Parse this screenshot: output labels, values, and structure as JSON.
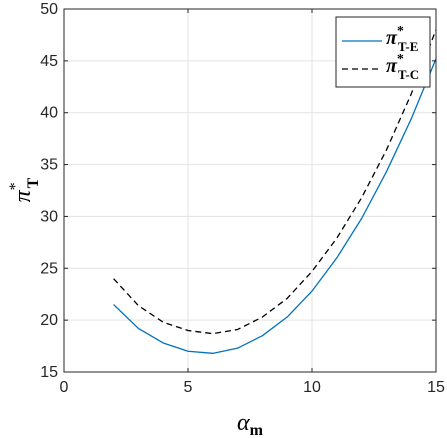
{
  "chart_data": {
    "type": "line",
    "title": "",
    "xlabel": {
      "symbol": "α",
      "sub": "m"
    },
    "ylabel": {
      "symbol": "π",
      "sup": "*",
      "sub": "T"
    },
    "xlim": [
      0,
      15
    ],
    "ylim": [
      15,
      50
    ],
    "xticks": [
      0,
      5,
      10,
      15
    ],
    "yticks": [
      15,
      20,
      25,
      30,
      35,
      40,
      45,
      50
    ],
    "grid": true,
    "legend_position": "top-right",
    "series": [
      {
        "label": {
          "symbol": "π",
          "sup": "*",
          "sub": "T-E"
        },
        "color": "#0072BD",
        "style": "solid",
        "x": [
          2,
          3,
          4,
          5,
          6,
          7,
          8,
          9,
          10,
          11,
          12,
          13,
          14,
          15
        ],
        "values": [
          21.5,
          19.2,
          17.8,
          17.0,
          16.8,
          17.3,
          18.5,
          20.3,
          22.8,
          26.0,
          29.8,
          34.3,
          39.4,
          45.2
        ]
      },
      {
        "label": {
          "symbol": "π",
          "sup": "*",
          "sub": "T-C"
        },
        "color": "#000000",
        "style": "dashed",
        "x": [
          2,
          3,
          4,
          5,
          6,
          7,
          8,
          9,
          10,
          11,
          12,
          13,
          14,
          15
        ],
        "values": [
          24.0,
          21.4,
          19.8,
          19.0,
          18.7,
          19.1,
          20.3,
          22.1,
          24.7,
          27.9,
          31.8,
          36.4,
          41.8,
          48.0
        ]
      }
    ]
  }
}
